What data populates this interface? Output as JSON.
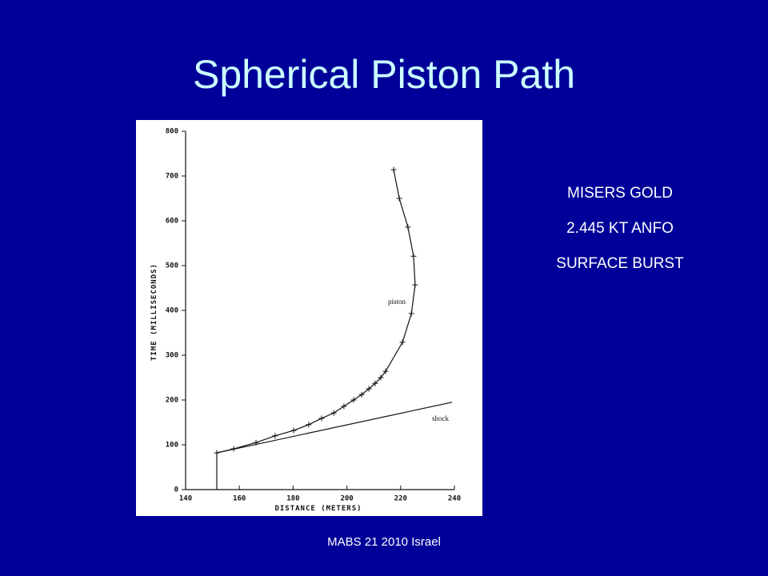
{
  "slide": {
    "title": "Spherical Piston Path",
    "notes": [
      "MISERS GOLD",
      "2.445 KT ANFO",
      "SURFACE BURST"
    ],
    "footer": "MABS 21 2010 Israel"
  },
  "chart_data": {
    "type": "line",
    "x_label": "DISTANCE (METERS)",
    "y_label": "TIME (MILLISECONDS)",
    "xlim": [
      140,
      240
    ],
    "xticks": [
      140,
      160,
      180,
      200,
      220,
      240
    ],
    "ylim": [
      0,
      800
    ],
    "yticks": [
      0,
      100,
      200,
      300,
      400,
      500,
      600,
      700,
      800
    ],
    "annotations": [
      "piston",
      "shock"
    ],
    "series": [
      {
        "name": "piston",
        "color": "#111111",
        "markers": true,
        "x": [
          151.6,
          157.9,
          166.2,
          173.3,
          180.2,
          185.8,
          190.6,
          195.1,
          198.9,
          202.5,
          205.5,
          208.2,
          210.5,
          212.6,
          214.4,
          220.7,
          224,
          225.4,
          224.8,
          222.7,
          219.5,
          217.4
        ],
        "values": [
          82,
          91,
          105,
          120,
          132,
          145,
          159,
          171,
          186,
          200,
          212,
          225,
          237,
          250,
          264,
          329,
          393,
          457,
          521,
          586,
          650,
          714
        ]
      },
      {
        "name": "shock",
        "color": "#111111",
        "markers": false,
        "x": [
          151.6,
          151.6,
          239.1
        ],
        "values": [
          0,
          82,
          195
        ]
      }
    ]
  }
}
